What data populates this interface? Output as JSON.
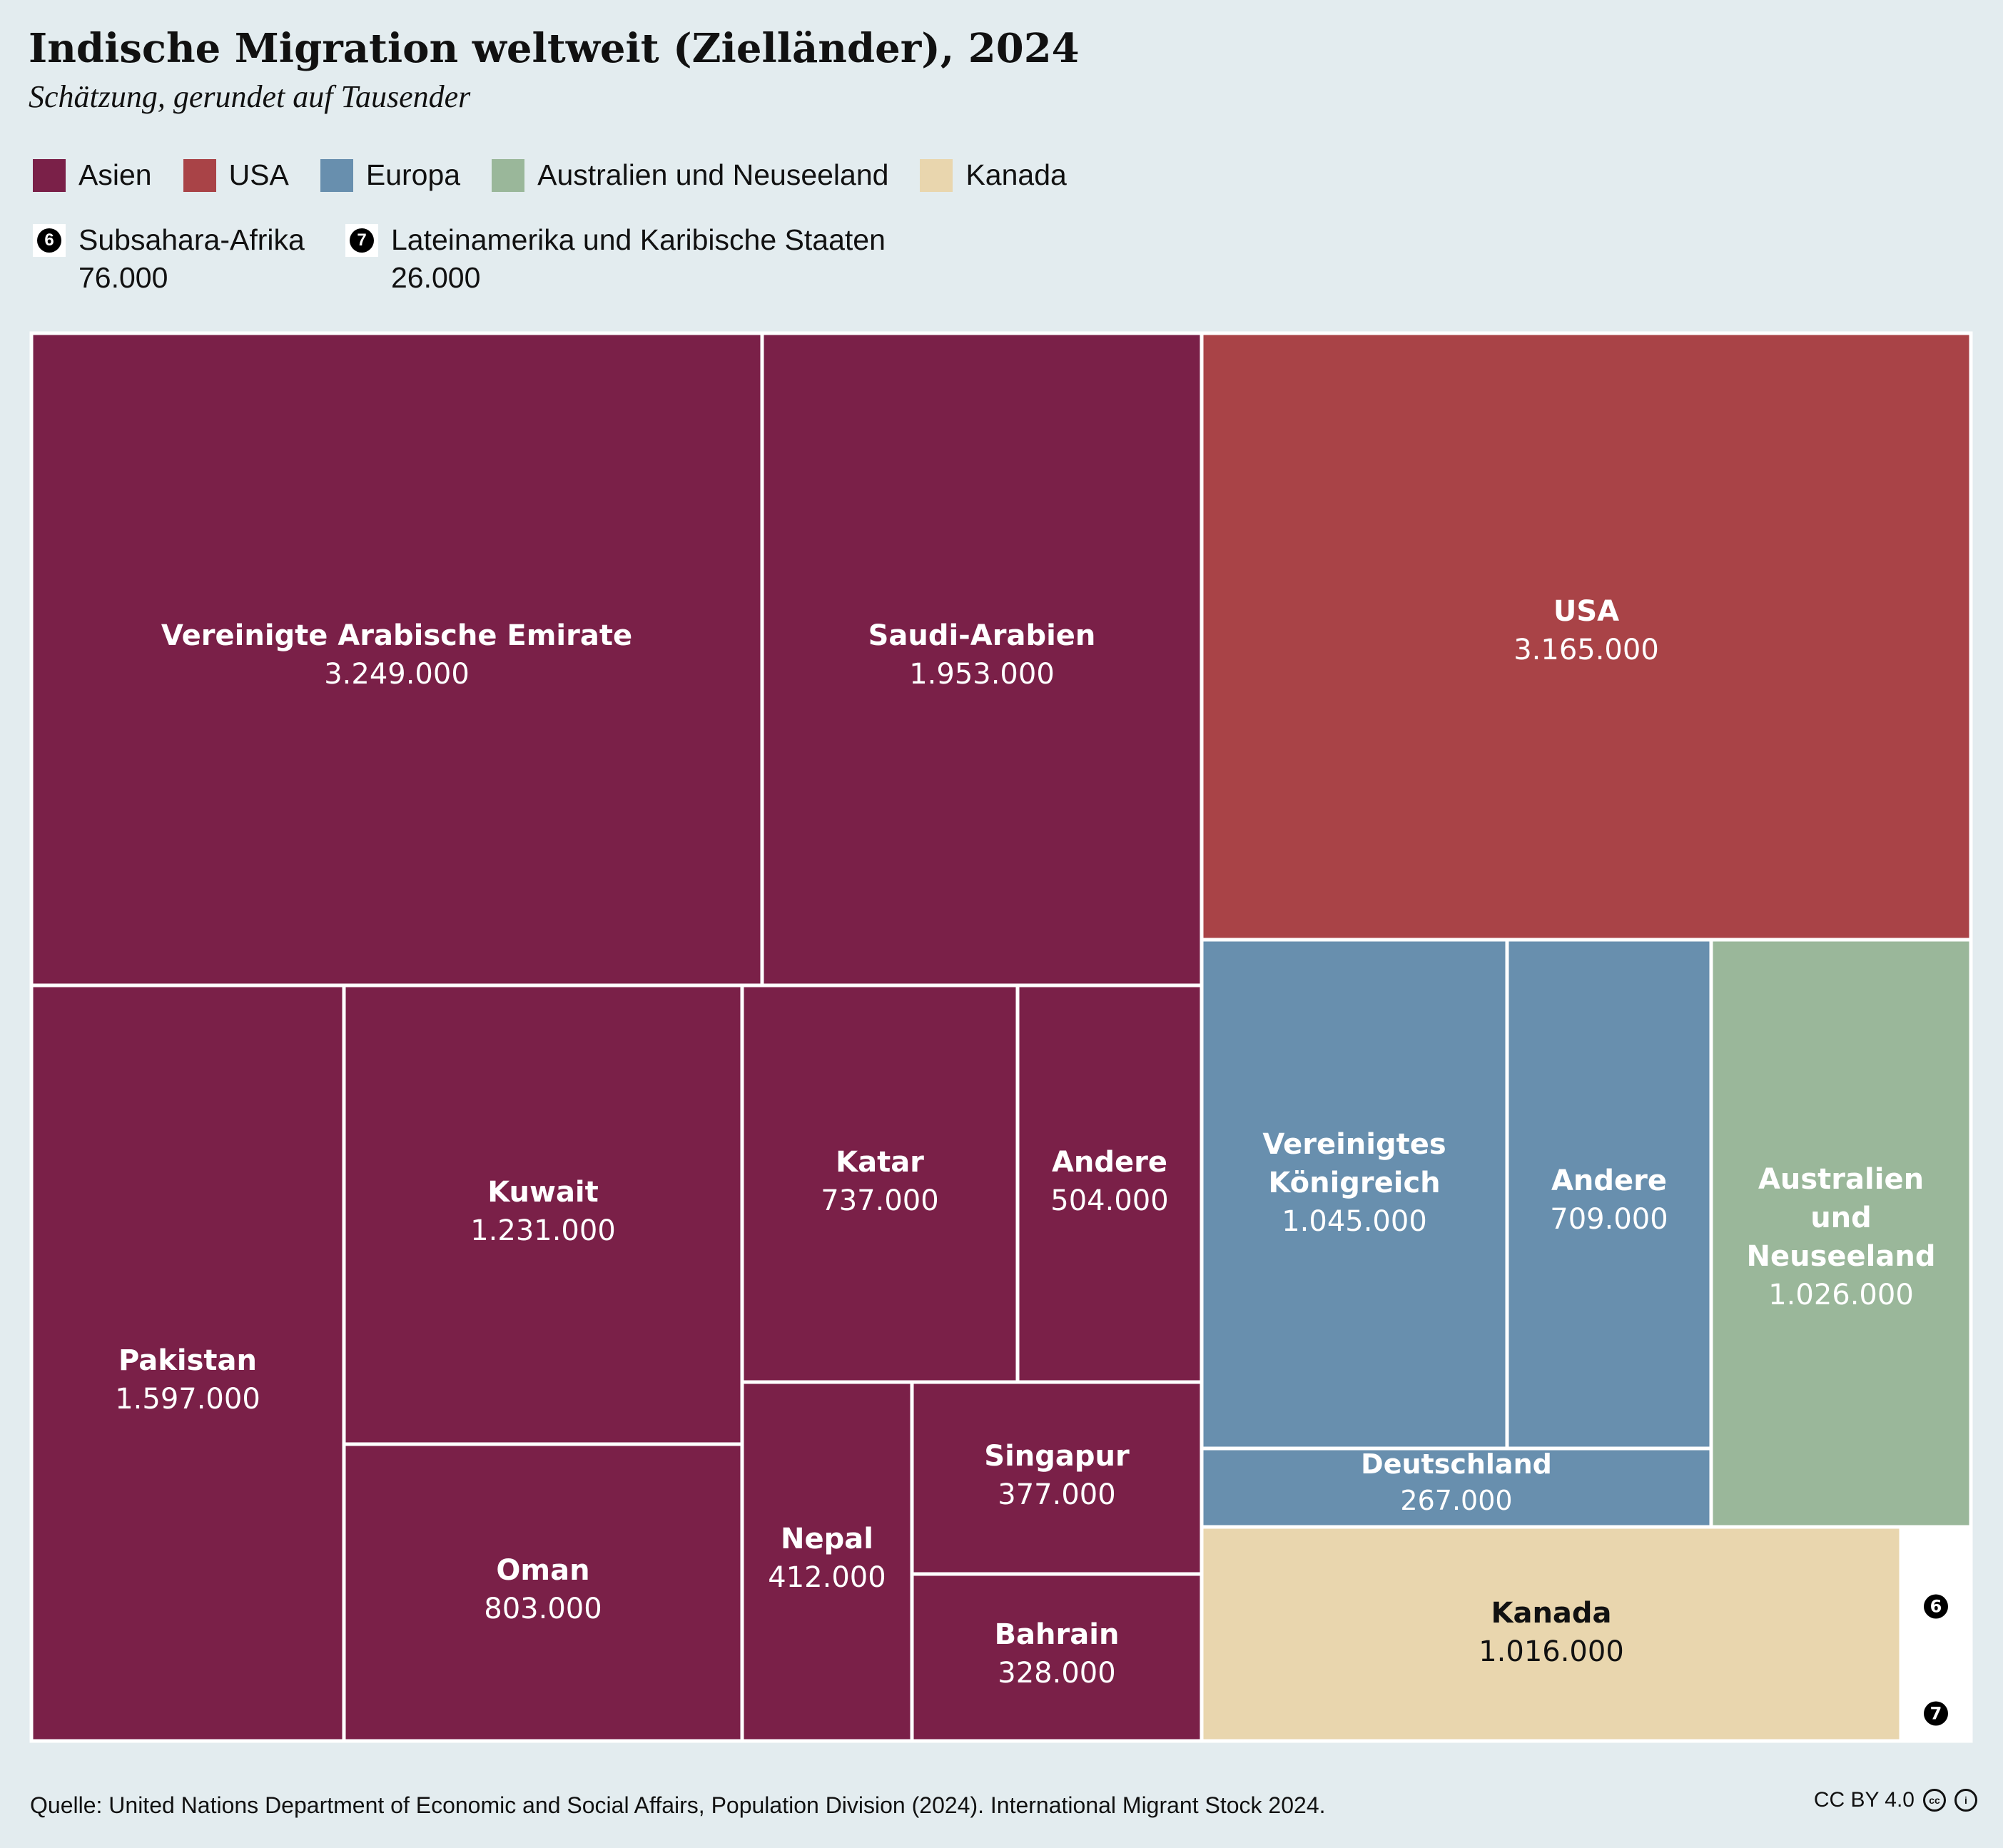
{
  "title": "Indische Migration weltweit (Zielländer), 2024",
  "subtitle": "Schätzung, gerundet auf Tausender",
  "legend": [
    {
      "label": "Asien",
      "color": "#7a2048"
    },
    {
      "label": "USA",
      "color": "#a94347"
    },
    {
      "label": "Europa",
      "color": "#688fae"
    },
    {
      "label": "Australien und Neuseeland",
      "color": "#9ab79a"
    },
    {
      "label": "Kanada",
      "color": "#e9d6ae"
    }
  ],
  "small_legend": [
    {
      "marker": "6",
      "label": "Subsahara-Afrika",
      "value": "76.000"
    },
    {
      "marker": "7",
      "label": "Lateinamerika und Karibische Staaten",
      "value": "26.000"
    }
  ],
  "chart_data": {
    "type": "treemap",
    "groups": [
      {
        "name": "Asien",
        "color": "#7a2048",
        "items": [
          {
            "label": "Vereinigte Arabische Emirate",
            "value": 3249000,
            "text": "3.249.000"
          },
          {
            "label": "Saudi-Arabien",
            "value": 1953000,
            "text": "1.953.000"
          },
          {
            "label": "Pakistan",
            "value": 1597000,
            "text": "1.597.000"
          },
          {
            "label": "Kuwait",
            "value": 1231000,
            "text": "1.231.000"
          },
          {
            "label": "Oman",
            "value": 803000,
            "text": "803.000"
          },
          {
            "label": "Katar",
            "value": 737000,
            "text": "737.000"
          },
          {
            "label": "Andere",
            "value": 504000,
            "text": "504.000"
          },
          {
            "label": "Nepal",
            "value": 412000,
            "text": "412.000"
          },
          {
            "label": "Singapur",
            "value": 377000,
            "text": "377.000"
          },
          {
            "label": "Bahrain",
            "value": 328000,
            "text": "328.000"
          }
        ]
      },
      {
        "name": "USA",
        "color": "#a94347",
        "items": [
          {
            "label": "USA",
            "value": 3165000,
            "text": "3.165.000"
          }
        ]
      },
      {
        "name": "Europa",
        "color": "#688fae",
        "items": [
          {
            "label": "Vereinigtes Königreich",
            "value": 1045000,
            "text": "1.045.000"
          },
          {
            "label": "Andere",
            "value": 709000,
            "text": "709.000"
          },
          {
            "label": "Deutschland",
            "value": 267000,
            "text": "267.000"
          }
        ]
      },
      {
        "name": "Australien und Neuseeland",
        "color": "#9ab79a",
        "items": [
          {
            "label": "Australien und Neuseeland",
            "value": 1026000,
            "text": "1.026.000"
          }
        ]
      },
      {
        "name": "Kanada",
        "color": "#e9d6ae",
        "items": [
          {
            "label": "Kanada",
            "value": 1016000,
            "text": "1.016.000"
          }
        ]
      },
      {
        "name": "Subsahara-Afrika",
        "color": "#ffffff",
        "items": [
          {
            "label": "6",
            "value": 76000,
            "text": ""
          }
        ]
      },
      {
        "name": "Lateinamerika und Karibische Staaten",
        "color": "#ffffff",
        "items": [
          {
            "label": "7",
            "value": 26000,
            "text": ""
          }
        ]
      }
    ]
  },
  "footer": {
    "source": "Quelle: United Nations Department of Economic and Social Affairs, Population Division (2024). International Migrant Stock 2024.",
    "license": "CC BY 4.0"
  }
}
